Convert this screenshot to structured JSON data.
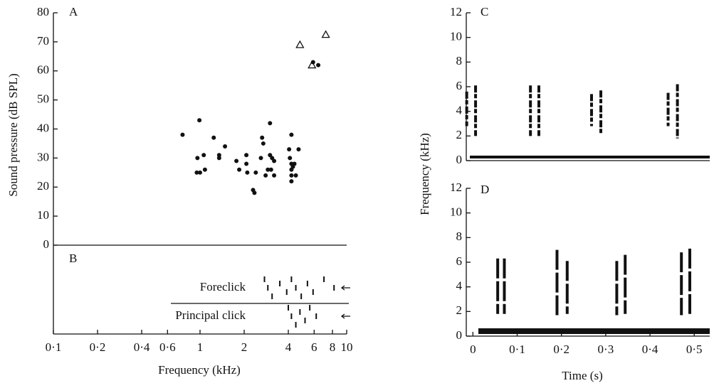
{
  "chart_data": [
    {
      "type": "scatter",
      "label": "A",
      "ylabel": "Sound pressure (dB SPL)",
      "ylim": [
        0,
        80
      ],
      "yticks": [
        0,
        10,
        20,
        30,
        40,
        50,
        60,
        70,
        80
      ],
      "xlim": [
        0.1,
        10
      ],
      "log_x": true,
      "series": [
        {
          "marker": "dot",
          "color": "#111111",
          "x": [
            0.76,
            0.96,
            0.99,
            0.95,
            1.0,
            1.06,
            1.08,
            1.24,
            1.35,
            1.35,
            1.48,
            1.77,
            1.85,
            2.07,
            2.07,
            2.1,
            2.3,
            2.35,
            2.4,
            2.6,
            2.65,
            2.7,
            2.8,
            2.9,
            3.0,
            3.0,
            3.05,
            3.1,
            3.2,
            3.2,
            4.2,
            4.05,
            4.1,
            4.2,
            4.2,
            4.2,
            4.2,
            4.3,
            4.4,
            4.7,
            4.5,
            5.9,
            6.4
          ],
          "values": [
            38,
            30,
            43,
            25,
            25,
            31,
            26,
            37,
            31,
            30,
            34,
            29,
            26,
            31,
            28,
            25,
            19,
            18,
            25,
            30,
            37,
            35,
            24,
            26,
            42,
            31,
            26,
            30,
            29,
            24,
            38,
            33,
            30,
            28,
            26,
            24,
            22,
            27,
            28,
            33,
            24,
            63,
            62
          ]
        },
        {
          "marker": "triangle",
          "color": "#111111",
          "x": [
            4.8,
            5.8,
            7.2
          ],
          "values": [
            69,
            62,
            72.5
          ]
        }
      ]
    },
    {
      "type": "strip",
      "label": "B",
      "xlabel": "Frequency (kHz)",
      "xlim": [
        0.1,
        10
      ],
      "log_x": true,
      "xticks": [
        {
          "value": 0.1,
          "label": "0·1"
        },
        {
          "value": 0.2,
          "label": "0·2"
        },
        {
          "value": 0.4,
          "label": "0·4"
        },
        {
          "value": 0.6,
          "label": "0·6"
        },
        1,
        2,
        4,
        6,
        8,
        10
      ],
      "rows": [
        {
          "name": "Foreclick",
          "x": [
            2.75,
            2.9,
            3.1,
            3.5,
            3.9,
            4.2,
            4.5,
            4.9,
            5.4,
            5.9,
            7.0,
            8.2
          ]
        },
        {
          "name": "Principal click",
          "x": [
            4.0,
            4.2,
            4.5,
            4.8,
            5.2,
            5.6,
            6.2
          ]
        }
      ]
    },
    {
      "type": "spectrogram",
      "label": "C",
      "ylabel": "Frequency (kHz)",
      "ylim": [
        0,
        12
      ],
      "yticks": [
        0,
        2,
        4,
        6,
        8,
        10,
        12
      ],
      "xlim": [
        -0.015,
        0.535
      ],
      "bursts": {
        "x": [
          -0.014,
          0.006,
          0.13,
          0.149,
          0.268,
          0.289,
          0.441,
          0.462
        ],
        "low": [
          2.8,
          2.0,
          2.0,
          2.0,
          2.8,
          2.2,
          2.8,
          1.8
        ],
        "high": [
          5.6,
          6.1,
          6.1,
          6.1,
          5.4,
          5.7,
          5.5,
          6.2
        ]
      }
    },
    {
      "type": "spectrogram",
      "label": "D",
      "xlabel": "Time (s)",
      "ylim": [
        0,
        12
      ],
      "yticks": [
        0,
        2,
        4,
        6,
        8,
        10,
        12
      ],
      "xlim": [
        -0.015,
        0.535
      ],
      "xticks": [
        0,
        {
          "value": 0.1,
          "label": "0·1"
        },
        {
          "value": 0.2,
          "label": "0·2"
        },
        {
          "value": 0.3,
          "label": "0·3"
        },
        {
          "value": 0.4,
          "label": "0·4"
        },
        {
          "value": 0.5,
          "label": "0·5"
        }
      ],
      "bursts": {
        "x": [
          0.056,
          0.071,
          0.19,
          0.213,
          0.325,
          0.344,
          0.471,
          0.49
        ],
        "low": [
          1.8,
          1.8,
          1.7,
          1.8,
          1.7,
          1.8,
          1.7,
          1.8
        ],
        "high": [
          6.3,
          6.3,
          7.0,
          6.1,
          6.1,
          6.6,
          6.8,
          7.1
        ]
      }
    }
  ]
}
